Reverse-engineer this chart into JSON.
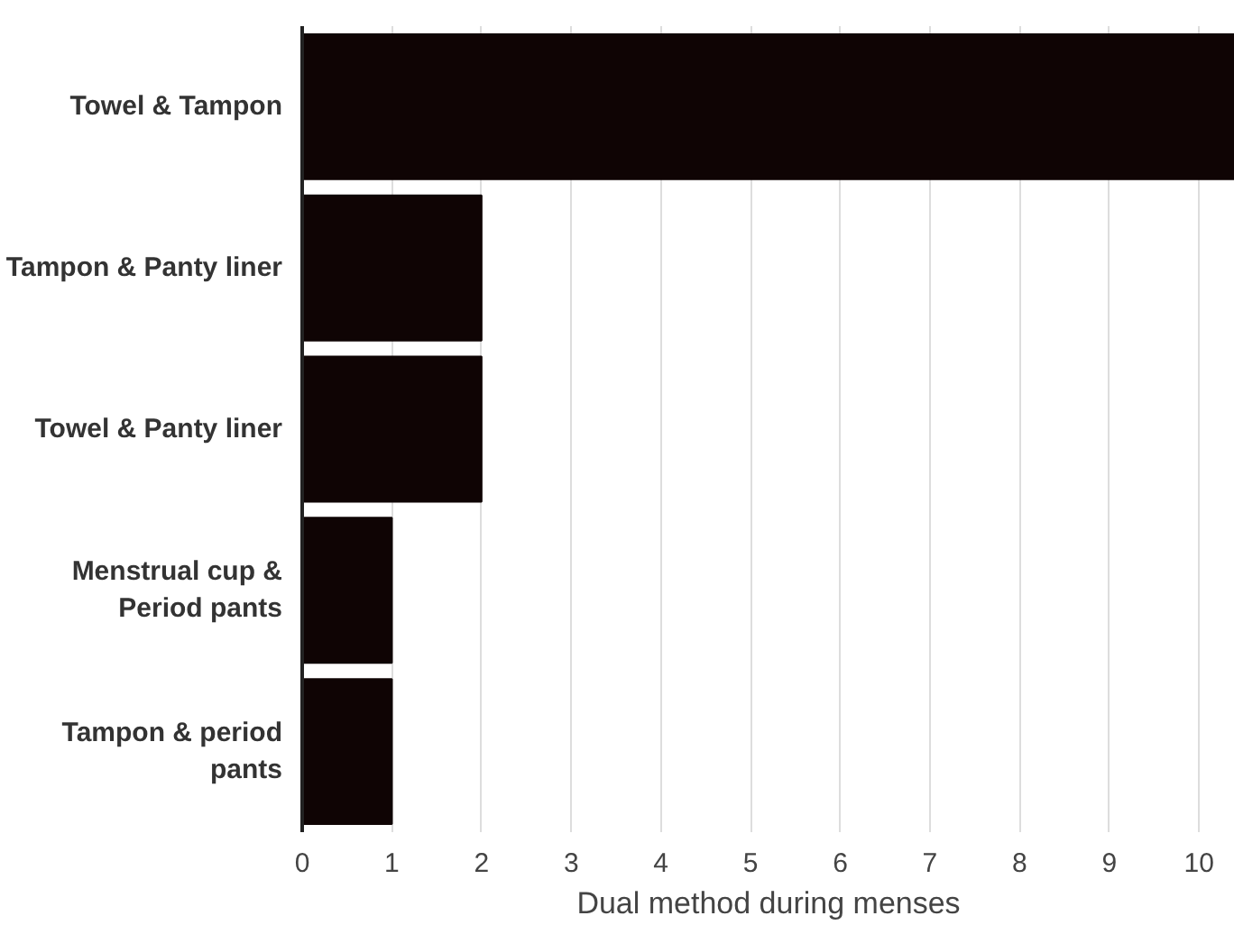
{
  "chart_data": {
    "type": "bar",
    "orientation": "horizontal",
    "xlabel": "Dual method during menses",
    "categories": [
      "Towel & Tampon",
      "Tampon & Panty liner",
      "Towel & Panty liner",
      "Menstrual cup & Period pants",
      "Tampon & period pants"
    ],
    "values": [
      10.4,
      2,
      2,
      1,
      1
    ],
    "color": "#0f0404",
    "xlim": [
      0,
      10.4
    ],
    "xticks": [
      0,
      1,
      2,
      3,
      4,
      5,
      6,
      7,
      8,
      9,
      10
    ],
    "grid": "x"
  }
}
